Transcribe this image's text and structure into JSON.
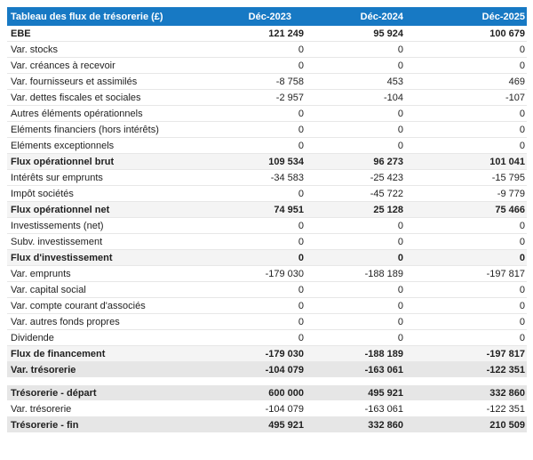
{
  "table": {
    "title": "Tableau des flux de trésorerie (£)",
    "columns": [
      "Déc-2023",
      "Déc-2024",
      "Déc-2025"
    ],
    "colors": {
      "header_bg": "#1779c4",
      "header_text": "#ffffff",
      "subtotal_bg": "#f4f4f4",
      "total_bg": "#e6e6e6",
      "row_border": "#e7e7e7",
      "text": "#1f1f1f"
    },
    "rows": [
      {
        "label": "EBE",
        "values": [
          "121 249",
          "95 924",
          "100 679"
        ],
        "style": "bold"
      },
      {
        "label": "Var. stocks",
        "values": [
          "0",
          "0",
          "0"
        ],
        "style": "normal"
      },
      {
        "label": "Var. créances à recevoir",
        "values": [
          "0",
          "0",
          "0"
        ],
        "style": "normal"
      },
      {
        "label": "Var. fournisseurs et assimilés",
        "values": [
          "-8 758",
          "453",
          "469"
        ],
        "style": "normal"
      },
      {
        "label": "Var. dettes fiscales et sociales",
        "values": [
          "-2 957",
          "-104",
          "-107"
        ],
        "style": "normal"
      },
      {
        "label": "Autres éléments opérationnels",
        "values": [
          "0",
          "0",
          "0"
        ],
        "style": "normal"
      },
      {
        "label": "Eléments financiers (hors intérêts)",
        "values": [
          "0",
          "0",
          "0"
        ],
        "style": "normal"
      },
      {
        "label": "Eléments exceptionnels",
        "values": [
          "0",
          "0",
          "0"
        ],
        "style": "normal"
      },
      {
        "label": "Flux opérationnel brut",
        "values": [
          "109 534",
          "96 273",
          "101 041"
        ],
        "style": "subtotal"
      },
      {
        "label": "Intérêts sur emprunts",
        "values": [
          "-34 583",
          "-25 423",
          "-15 795"
        ],
        "style": "normal"
      },
      {
        "label": "Impôt sociétés",
        "values": [
          "0",
          "-45 722",
          "-9 779"
        ],
        "style": "normal"
      },
      {
        "label": "Flux opérationnel net",
        "values": [
          "74 951",
          "25 128",
          "75 466"
        ],
        "style": "subtotal"
      },
      {
        "label": "Investissements (net)",
        "values": [
          "0",
          "0",
          "0"
        ],
        "style": "normal"
      },
      {
        "label": "Subv. investissement",
        "values": [
          "0",
          "0",
          "0"
        ],
        "style": "normal"
      },
      {
        "label": "Flux d'investissement",
        "values": [
          "0",
          "0",
          "0"
        ],
        "style": "subtotal"
      },
      {
        "label": "Var. emprunts",
        "values": [
          "-179 030",
          "-188 189",
          "-197 817"
        ],
        "style": "normal"
      },
      {
        "label": "Var. capital social",
        "values": [
          "0",
          "0",
          "0"
        ],
        "style": "normal"
      },
      {
        "label": "Var. compte courant d'associés",
        "values": [
          "0",
          "0",
          "0"
        ],
        "style": "normal"
      },
      {
        "label": "Var. autres fonds propres",
        "values": [
          "0",
          "0",
          "0"
        ],
        "style": "normal"
      },
      {
        "label": "Dividende",
        "values": [
          "0",
          "0",
          "0"
        ],
        "style": "normal"
      },
      {
        "label": "Flux de financement",
        "values": [
          "-179 030",
          "-188 189",
          "-197 817"
        ],
        "style": "subtotal"
      },
      {
        "label": "Var. trésorerie",
        "values": [
          "-104 079",
          "-163 061",
          "-122 351"
        ],
        "style": "total"
      },
      {
        "label": "Trésorerie - départ",
        "values": [
          "600 000",
          "495 921",
          "332 860"
        ],
        "style": "total",
        "gap_before": true
      },
      {
        "label": "Var. trésorerie",
        "values": [
          "-104 079",
          "-163 061",
          "-122 351"
        ],
        "style": "normal"
      },
      {
        "label": "Trésorerie - fin",
        "values": [
          "495 921",
          "332 860",
          "210 509"
        ],
        "style": "total"
      }
    ]
  }
}
